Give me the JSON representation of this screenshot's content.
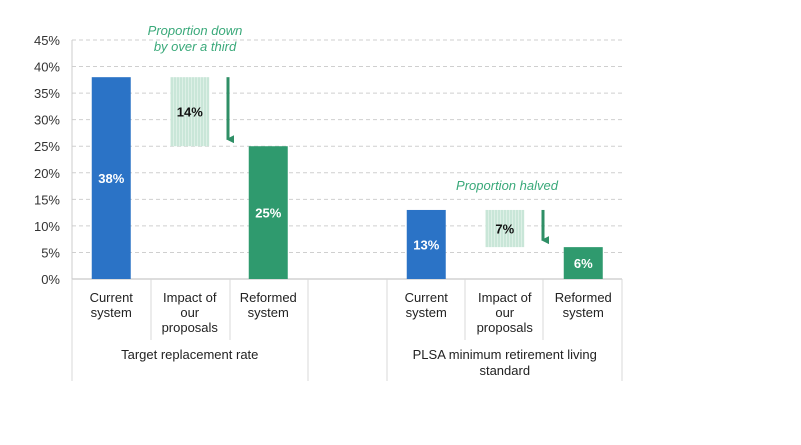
{
  "chart_data": {
    "type": "bar",
    "subtype": "waterfall",
    "title": "",
    "ylabel": "",
    "xlabel": "",
    "ylim": [
      0,
      45
    ],
    "yticks": [
      "0%",
      "5%",
      "10%",
      "15%",
      "20%",
      "25%",
      "30%",
      "35%",
      "40%",
      "45%"
    ],
    "ytick_values": [
      0,
      5,
      10,
      15,
      20,
      25,
      30,
      35,
      40,
      45
    ],
    "grid": true,
    "groups": [
      {
        "label": "Target replacement rate",
        "categories": [
          "Current system",
          "Impact of our proposals",
          "Reformed system"
        ],
        "category_lines": [
          [
            "Current",
            "system"
          ],
          [
            "Impact of",
            "our",
            "proposals"
          ],
          [
            "Reformed",
            "system"
          ]
        ],
        "values": [
          38,
          14,
          25
        ],
        "data_labels": [
          "38%",
          "14%",
          "25%"
        ],
        "annotation": [
          "Proportion down",
          "by over a third"
        ]
      },
      {
        "label": "PLSA minimum retirement living standard",
        "label_lines": [
          "PLSA minimum retirement living",
          "standard"
        ],
        "categories": [
          "Current system",
          "Impact of our proposals",
          "Reformed system"
        ],
        "category_lines": [
          [
            "Current",
            "system"
          ],
          [
            "Impact of",
            "our",
            "proposals"
          ],
          [
            "Reformed",
            "system"
          ]
        ],
        "values": [
          13,
          7,
          6
        ],
        "data_labels": [
          "13%",
          "7%",
          "6%"
        ],
        "annotation": [
          "Proportion halved"
        ]
      }
    ],
    "colors": {
      "current": "#2b73c6",
      "impact": "#c9e6d8",
      "reformed": "#2f9a6e",
      "arrow": "#2f8f66",
      "annotation": "#3aa97a"
    }
  }
}
